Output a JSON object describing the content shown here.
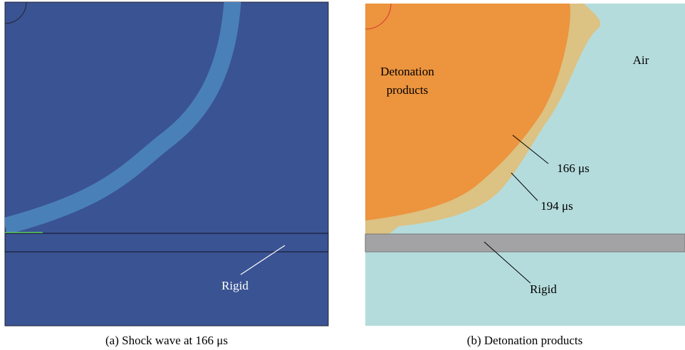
{
  "panels": [
    {
      "caption": "(a) Shock wave at 166 μs",
      "labels": {
        "rigid": "Rigid"
      }
    },
    {
      "caption": "(b) Detonation products",
      "labels": {
        "products": [
          "Detonation",
          "products"
        ],
        "air": "Air",
        "t1": "166 μs",
        "t2": "194 μs",
        "rigid": "Rigid"
      }
    }
  ]
}
